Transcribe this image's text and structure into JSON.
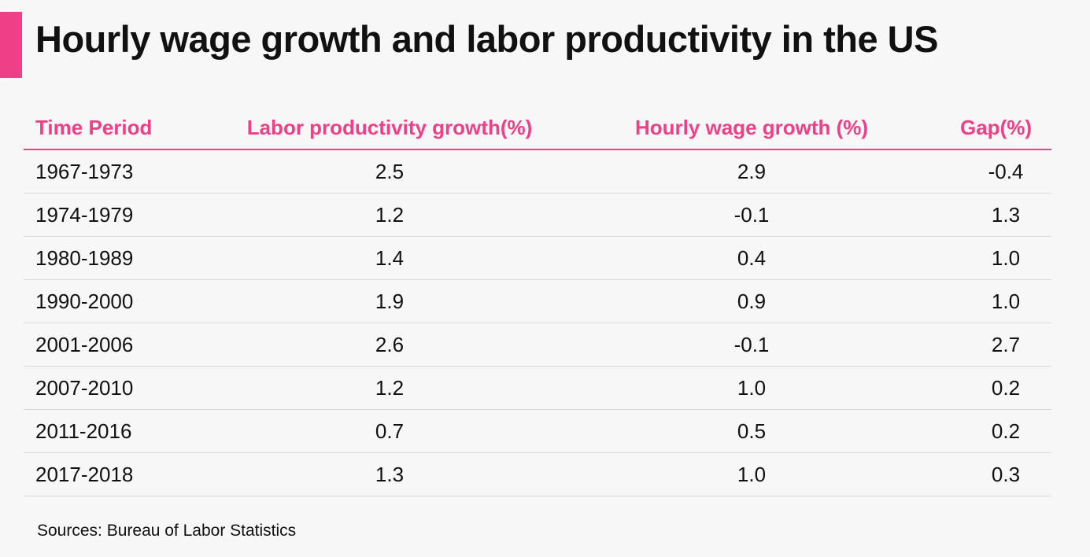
{
  "title": "Hourly wage growth and labor productivity in the US",
  "source": "Sources: Bureau of Labor Statistics",
  "colors": {
    "accent": "#ef3f87",
    "text": "#111111",
    "background": "#f7f7f7",
    "rule": "#d8d8d8"
  },
  "chart_data": {
    "type": "table",
    "title": "Hourly wage growth and labor productivity in the US",
    "columns": [
      "Time Period",
      "Labor productivity growth(%)",
      "Hourly wage growth (%)",
      "Gap(%)"
    ],
    "rows": [
      [
        "1967-1973",
        "2.5",
        "2.9",
        "-0.4"
      ],
      [
        "1974-1979",
        "1.2",
        "-0.1",
        "1.3"
      ],
      [
        "1980-1989",
        "1.4",
        "0.4",
        "1.0"
      ],
      [
        "1990-2000",
        "1.9",
        "0.9",
        "1.0"
      ],
      [
        "2001-2006",
        "2.6",
        "-0.1",
        "2.7"
      ],
      [
        "2007-2010",
        "1.2",
        "1.0",
        "0.2"
      ],
      [
        "2011-2016",
        "0.7",
        "0.5",
        "0.2"
      ],
      [
        "2017-2018",
        "1.3",
        "1.0",
        "0.3"
      ]
    ]
  }
}
